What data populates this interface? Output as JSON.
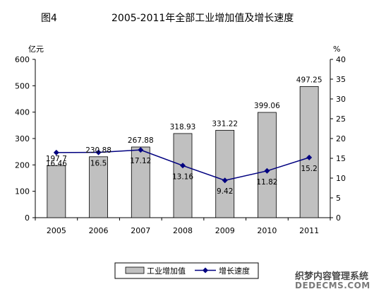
{
  "title": {
    "figure_label": "图4",
    "text": "2005-2011年全部工业增加值及增长速度"
  },
  "watermark": {
    "line1": "织梦内容管理系统",
    "line2": "DEDECMS.COM"
  },
  "colors": {
    "bar_fill": "#c0c0c0",
    "bar_stroke": "#000000",
    "line": "#000080",
    "marker": "#000080"
  },
  "chart_data": {
    "type": "bar",
    "categories": [
      "2005",
      "2006",
      "2007",
      "2008",
      "2009",
      "2010",
      "2011"
    ],
    "series": [
      {
        "name": "工业增加值",
        "type": "bar",
        "axis": "left",
        "values": [
          197.7,
          230.88,
          267.88,
          318.93,
          331.22,
          399.06,
          497.25
        ],
        "labels": [
          "197.7",
          "230.88",
          "267.88",
          "318.93",
          "331.22",
          "399.06",
          "497.25"
        ]
      },
      {
        "name": "增长速度",
        "type": "line",
        "axis": "right",
        "values": [
          16.46,
          16.5,
          17.12,
          13.16,
          9.42,
          11.82,
          15.2
        ],
        "labels": [
          "16.46",
          "16.5",
          "17.12",
          "13.16",
          "9.42",
          "11.82",
          "15.2"
        ]
      }
    ],
    "y_left": {
      "unit": "亿元",
      "ylim": [
        0,
        600
      ],
      "ticks": [
        "0",
        "100",
        "200",
        "300",
        "400",
        "500",
        "600"
      ]
    },
    "y_right": {
      "unit": "%",
      "ylim": [
        0,
        40
      ],
      "ticks": [
        "0",
        "5",
        "10",
        "15",
        "20",
        "25",
        "30",
        "35",
        "40"
      ]
    },
    "grid": false,
    "legend_position": "bottom"
  }
}
